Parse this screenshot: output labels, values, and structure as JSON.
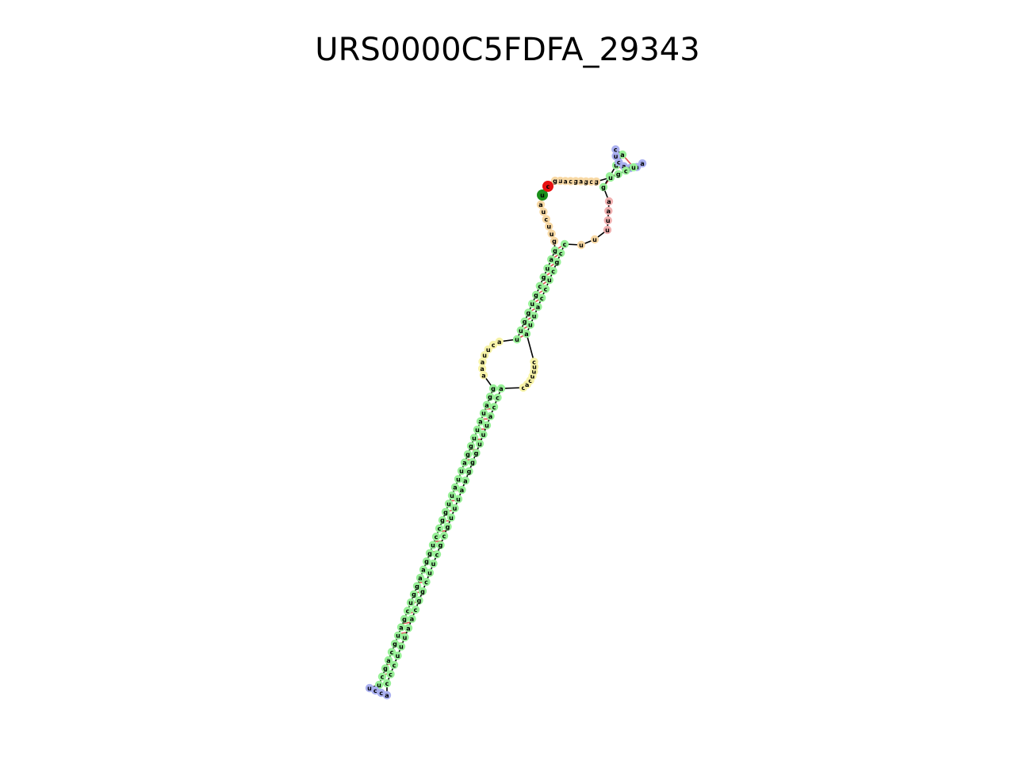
{
  "title": "URS0000C5FDFA_29343",
  "colors": {
    "stem": "#98f098",
    "hairpin_loop": "#aab0f0",
    "interior_loop": "#f7f3a8",
    "multiloop": "#f8d9a5",
    "dangling_3p": "#f0b0b0",
    "start_5p": "#1a8f1a",
    "end_3p": "#e81010",
    "backbone": "#000000",
    "pair_bond": "#e05050"
  },
  "segments": {
    "five_prime_end": [
      "u"
    ],
    "multiloop_left": [
      "a",
      "u",
      "c",
      "u",
      "u",
      "g"
    ],
    "long_stem_5p": [
      "g",
      "a",
      "u",
      "g",
      "c",
      "g",
      "u",
      "g",
      "g",
      "u",
      "u"
    ],
    "interior_left": [
      "a",
      "c",
      "u",
      "u",
      "a",
      "a",
      "a"
    ],
    "lower_stem_5p": [
      "g",
      "g",
      "a",
      "u",
      "a",
      "u",
      "u",
      "g",
      "g",
      "a",
      "u",
      "u",
      "a",
      "u",
      "u",
      "g",
      "g",
      "c",
      "c",
      "u",
      "g",
      "g",
      "a",
      "a",
      "g",
      "g",
      "u",
      "c",
      "g",
      "a",
      "u",
      "g",
      "c",
      "a",
      "g",
      "c",
      "u"
    ],
    "hairpin_bottom": [
      "u",
      "c",
      "c",
      "a"
    ],
    "lower_stem_3p": [
      "c",
      "c",
      "c",
      "u",
      "u",
      "u",
      "a",
      "a",
      "c",
      "g",
      "g",
      "c",
      "u",
      "u",
      "c",
      "g",
      "c",
      "g",
      "u",
      "u",
      "u",
      "a",
      "a",
      "g",
      "g",
      "g",
      "u",
      "u",
      "u",
      "a",
      "c",
      "c",
      "a"
    ],
    "interior_right": [
      "c",
      "a",
      "c",
      "u",
      "u",
      "u",
      "c"
    ],
    "long_stem_3p": [
      "a",
      "u",
      "u",
      "a",
      "c",
      "c",
      "u",
      "c",
      "g",
      "c",
      "c"
    ],
    "multiloop_bottom": [
      "u",
      "u"
    ],
    "three_prime_tail": [
      "u",
      "u",
      "a",
      "a"
    ],
    "top_stem_5p": [
      "g",
      "g",
      "u",
      "a"
    ],
    "hairpin_top": [
      "c",
      "u",
      "c",
      "a",
      "a",
      "a",
      "a"
    ],
    "top_stem_3p": [
      "u",
      "c",
      "g",
      "u"
    ],
    "multiloop_top": [
      "g",
      "c",
      "g",
      "a",
      "g",
      "c",
      "a",
      "u",
      "g"
    ],
    "three_prime_end": [
      "c"
    ]
  }
}
